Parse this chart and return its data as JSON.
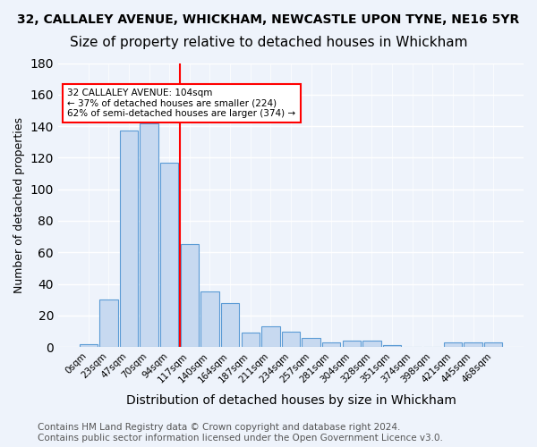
{
  "title1": "32, CALLALEY AVENUE, WHICKHAM, NEWCASTLE UPON TYNE, NE16 5YR",
  "title2": "Size of property relative to detached houses in Whickham",
  "xlabel": "Distribution of detached houses by size in Whickham",
  "ylabel": "Number of detached properties",
  "bar_labels": [
    "0sqm",
    "23sqm",
    "47sqm",
    "70sqm",
    "94sqm",
    "117sqm",
    "140sqm",
    "164sqm",
    "187sqm",
    "211sqm",
    "234sqm",
    "257sqm",
    "281sqm",
    "304sqm",
    "328sqm",
    "351sqm",
    "374sqm",
    "398sqm",
    "421sqm",
    "445sqm",
    "468sqm"
  ],
  "bar_values": [
    2,
    30,
    137,
    142,
    117,
    65,
    35,
    28,
    9,
    13,
    10,
    6,
    3,
    4,
    4,
    1,
    0,
    0,
    3,
    3,
    3
  ],
  "bar_color": "#c7d9f0",
  "bar_edge_color": "#5b9bd5",
  "red_line_x": 4.5,
  "annotation_text": "32 CALLALEY AVENUE: 104sqm\n← 37% of detached houses are smaller (224)\n62% of semi-detached houses are larger (374) →",
  "annotation_box_color": "white",
  "annotation_box_edge": "red",
  "vline_color": "red",
  "ylim": [
    0,
    180
  ],
  "yticks": [
    0,
    20,
    40,
    60,
    80,
    100,
    120,
    140,
    160,
    180
  ],
  "footer1": "Contains HM Land Registry data © Crown copyright and database right 2024.",
  "footer2": "Contains public sector information licensed under the Open Government Licence v3.0.",
  "bg_color": "#eef3fb",
  "grid_color": "white",
  "title1_fontsize": 10,
  "title2_fontsize": 11,
  "xlabel_fontsize": 10,
  "ylabel_fontsize": 9,
  "footer_fontsize": 7.5,
  "tick_fontsize": 7.5
}
